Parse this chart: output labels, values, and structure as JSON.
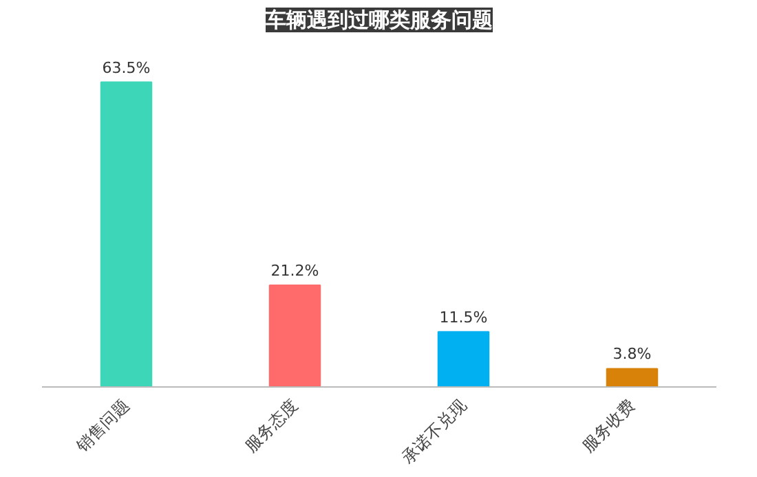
{
  "chart_data": {
    "type": "bar",
    "title": "车辆遇到过哪类服务问题",
    "categories": [
      "销售问题",
      "服务态度",
      "承诺不兑现",
      "服务收费"
    ],
    "values": [
      63.5,
      21.2,
      11.5,
      3.8
    ],
    "colors": [
      "#3dd6b8",
      "#ff6b6b",
      "#00b0f0",
      "#d9820a"
    ],
    "value_labels": [
      "63.5%",
      "21.2%",
      "11.5%",
      "3.8%"
    ]
  }
}
